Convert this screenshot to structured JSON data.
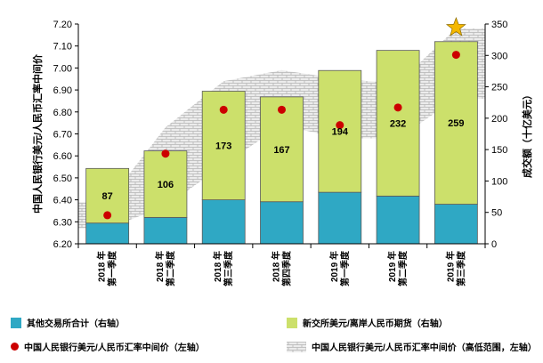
{
  "chart_data": {
    "type": "bar",
    "categories": [
      [
        "2018 年",
        "第一季度"
      ],
      [
        "2018 年",
        "第二季度"
      ],
      [
        "2018 年",
        "第三季度"
      ],
      [
        "2018 年",
        "第四季度"
      ],
      [
        "2019 年",
        "第一季度"
      ],
      [
        "2019 年",
        "第二季度"
      ],
      [
        "2019 年",
        "第三季度"
      ]
    ],
    "series": [
      {
        "name": "其他交易所合计（右轴）",
        "axis": "right",
        "stack": "vol",
        "color": "#2fa8c4",
        "values": [
          33,
          42,
          70,
          67,
          82,
          76,
          63
        ]
      },
      {
        "name": "新交所美元/离岸人民币期货（右轴）",
        "axis": "right",
        "stack": "vol",
        "color": "#cce06b",
        "values": [
          87,
          106,
          173,
          167,
          194,
          232,
          259
        ]
      },
      {
        "name": "中国人民银行美元/人民币汇率中间价（左轴）",
        "axis": "left",
        "type": "scatter",
        "color": "#cc0000",
        "values": [
          6.33,
          6.61,
          6.81,
          6.81,
          6.74,
          6.82,
          7.06
        ]
      },
      {
        "name": "中国人民银行美元/人民币汇率中间价（高低范围，左轴）",
        "axis": "left",
        "type": "range-band",
        "color": "#c8c8c8",
        "low": [
          6.27,
          6.37,
          6.56,
          6.74,
          6.68,
          6.68,
          6.86
        ],
        "high": [
          6.39,
          6.73,
          6.94,
          6.99,
          6.95,
          6.93,
          7.18
        ]
      }
    ],
    "bar_labels": [
      "87",
      "106",
      "173",
      "167",
      "194",
      "232",
      "259"
    ],
    "yleft": {
      "label": "中国人民银行美元/人民币汇率中间价",
      "ylim": [
        6.2,
        7.2
      ],
      "ticks": [
        "6.20",
        "6.30",
        "6.40",
        "6.50",
        "6.60",
        "6.70",
        "6.80",
        "6.90",
        "7.00",
        "7.10",
        "7.20"
      ]
    },
    "yright": {
      "label": "成交额（十亿美元）",
      "ylim": [
        0,
        350
      ],
      "ticks": [
        "0",
        "50",
        "100",
        "150",
        "200",
        "250",
        "300",
        "350"
      ]
    },
    "annotation": {
      "icon": "star-icon",
      "category_index": 6,
      "color": "#f5b800"
    },
    "grid": false,
    "legend_placement": "bottom"
  }
}
